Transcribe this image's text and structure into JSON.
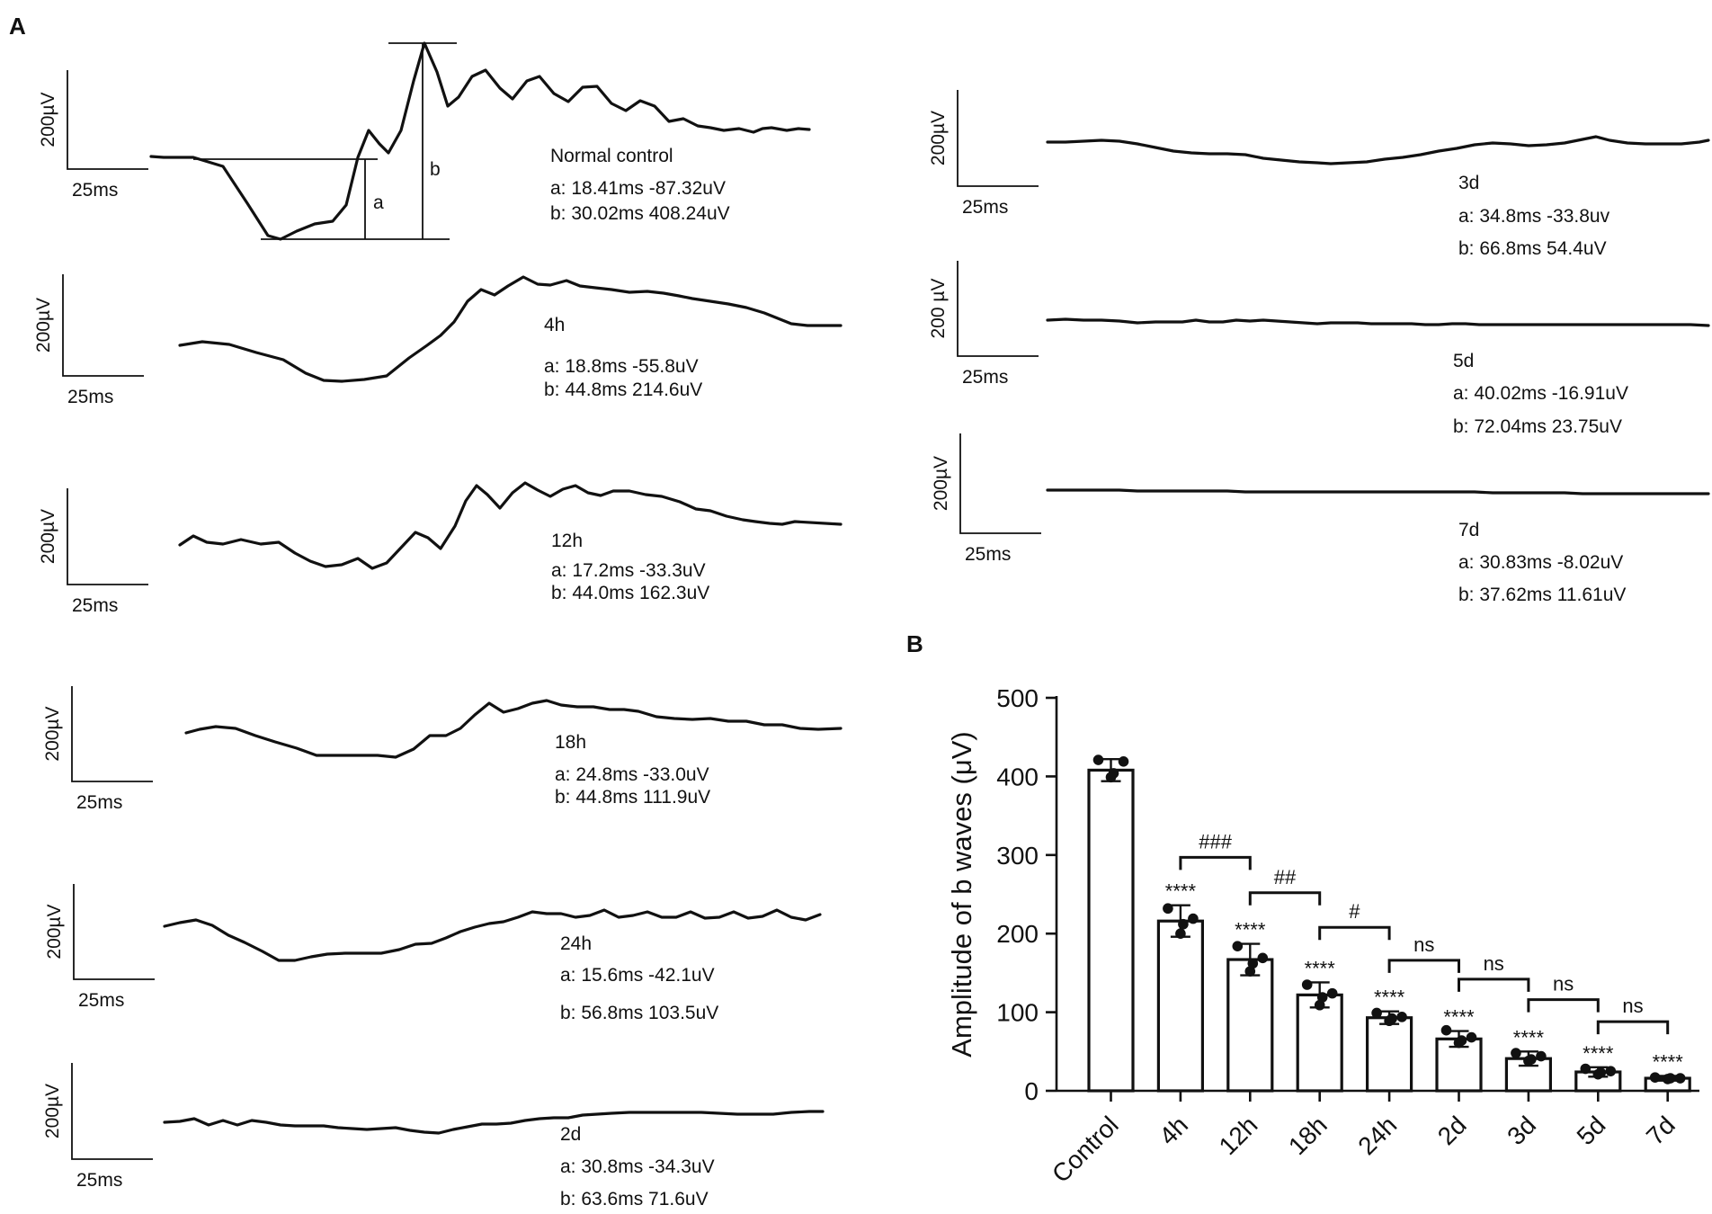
{
  "panel_a_label": "A",
  "panel_b_label": "B",
  "traces": [
    {
      "id": "control",
      "title": "Normal control",
      "a": "a:  18.41ms  -87.32uV",
      "b": "b:  30.02ms  408.24uV",
      "scale_v": "200µV",
      "scale_t": "25ms",
      "marker_a": "a",
      "marker_b": "b"
    },
    {
      "id": "4h",
      "title": "4h",
      "a": "a:  18.8ms  -55.8uV",
      "b": "b:  44.8ms  214.6uV",
      "scale_v": "200µV",
      "scale_t": "25ms"
    },
    {
      "id": "12h",
      "title": "12h",
      "a": "a:  17.2ms  -33.3uV",
      "b": "b:  44.0ms  162.3uV",
      "scale_v": "200µV",
      "scale_t": "25ms"
    },
    {
      "id": "18h",
      "title": "18h",
      "a": "a:  24.8ms  -33.0uV",
      "b": "b:  44.8ms  111.9uV",
      "scale_v": "200µV",
      "scale_t": "25ms"
    },
    {
      "id": "24h",
      "title": "24h",
      "a": "a: 15.6ms  -42.1uV",
      "b": "b:  56.8ms  103.5uV",
      "scale_v": "200µV",
      "scale_t": "25ms"
    },
    {
      "id": "2d",
      "title": "2d",
      "a": "a:  30.8ms  -34.3uV",
      "b": "b:  63.6ms  71.6uV",
      "scale_v": "200µV",
      "scale_t": "25ms"
    },
    {
      "id": "3d",
      "title": "3d",
      "a": "a:  34.8ms  -33.8uv",
      "b": "b:  66.8ms  54.4uV",
      "scale_v": "200µV",
      "scale_t": "25ms"
    },
    {
      "id": "5d",
      "title": "5d",
      "a": "a: 40.02ms  -16.91uV",
      "b": "b: 72.04ms  23.75uV",
      "scale_v": "200 µV",
      "scale_t": "25ms"
    },
    {
      "id": "7d",
      "title": "7d",
      "a": "a:  30.83ms  -8.02uV",
      "b": "b:  37.62ms  11.61uV",
      "scale_v": "200µV",
      "scale_t": "25ms"
    }
  ],
  "chart_data": {
    "type": "bar",
    "title": "",
    "xlabel": "",
    "ylabel": "Amplitude of b waves (μV)",
    "ylim": [
      0,
      500
    ],
    "yticks": [
      0,
      100,
      200,
      300,
      400,
      500
    ],
    "categories": [
      "Control",
      "4h",
      "12h",
      "18h",
      "24h",
      "2d",
      "3d",
      "5d",
      "7d"
    ],
    "values": [
      408,
      216,
      167,
      122,
      93,
      66,
      41,
      24,
      16
    ],
    "errors": [
      14,
      20,
      20,
      16,
      8,
      10,
      9,
      6,
      3
    ],
    "points": [
      [
        421,
        419,
        399,
        404
      ],
      [
        232,
        219,
        200,
        212
      ],
      [
        184,
        169,
        152,
        162
      ],
      [
        135,
        124,
        109,
        119
      ],
      [
        99,
        94,
        89,
        92
      ],
      [
        77,
        68,
        61,
        64
      ],
      [
        48,
        44,
        38,
        40
      ],
      [
        28,
        25,
        21,
        23
      ],
      [
        17,
        16,
        15,
        16
      ]
    ],
    "stars": [
      "",
      "****",
      "****",
      "****",
      "****",
      "****",
      "****",
      "****",
      "****"
    ],
    "comparisons": [
      {
        "from": "4h",
        "to": "12h",
        "label": "###",
        "level": 297
      },
      {
        "from": "12h",
        "to": "18h",
        "label": "##",
        "level": 252
      },
      {
        "from": "18h",
        "to": "24h",
        "label": "#",
        "level": 208
      },
      {
        "from": "24h",
        "to": "2d",
        "label": "ns",
        "level": 166
      },
      {
        "from": "2d",
        "to": "3d",
        "label": "ns",
        "level": 142
      },
      {
        "from": "3d",
        "to": "5d",
        "label": "ns",
        "level": 116
      },
      {
        "from": "5d",
        "to": "7d",
        "label": "ns",
        "level": 88
      }
    ]
  }
}
